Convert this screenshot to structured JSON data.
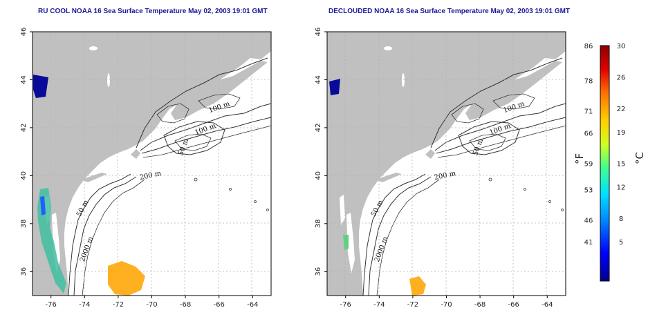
{
  "panels": [
    {
      "title": "RU COOL NOAA 16 Sea Surface Temperature May 02, 2003 19:01 GMT"
    },
    {
      "title": "DECLOUDED NOAA 16 Sea Surface Temperature May 02, 2003 19:01 GMT"
    }
  ],
  "map": {
    "lon_range": [
      -77.1,
      -62.9
    ],
    "lat_range": [
      35.0,
      46.0
    ],
    "lon_ticks": [
      "-76",
      "-74",
      "-72",
      "-70",
      "-68",
      "-66",
      "-64"
    ],
    "lat_ticks": [
      "36",
      "38",
      "40",
      "42",
      "44",
      "46"
    ],
    "grid": "dotted",
    "colors": {
      "land": "#c0c0c0",
      "ocean": "#ffffff",
      "contour": "#333333",
      "frame": "#000000"
    }
  },
  "contour_labels": [
    "100 m",
    "100 m",
    "50 m",
    "200 m",
    "50 m",
    "2000 m"
  ],
  "colorbar": {
    "fahrenheit_ticks": [
      "86",
      "78",
      "71",
      "66",
      "59",
      "53",
      "46",
      "41"
    ],
    "celsius_ticks": [
      "30",
      "26",
      "22",
      "19",
      "15",
      "12",
      "8",
      "5"
    ],
    "fahrenheit_unit": "°F",
    "celsius_unit": "°C",
    "gradient": [
      "#00008b",
      "#0000ff",
      "#0080ff",
      "#00e0ff",
      "#40ff90",
      "#d0ff20",
      "#ffd000",
      "#ff7000",
      "#e00000",
      "#8b0000"
    ]
  }
}
